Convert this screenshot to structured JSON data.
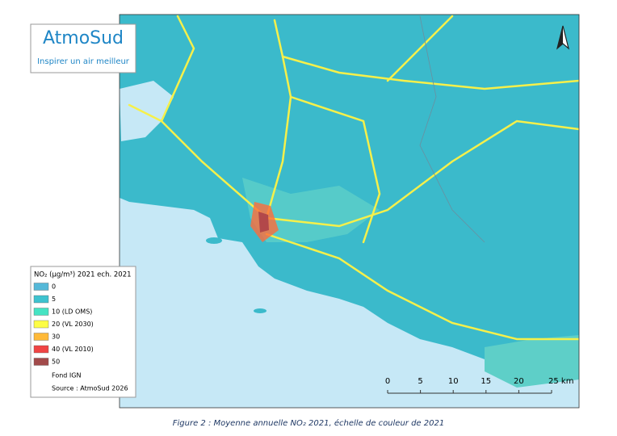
{
  "logo": {
    "name": "AtmoSud",
    "tagline": "Inspirer un air meilleur"
  },
  "legend": {
    "title": "NO₂ (µg/m³) 2021 ech. 2021",
    "items": [
      {
        "label": "0",
        "color": "#55b8d8"
      },
      {
        "label": "5",
        "color": "#3ec2cf"
      },
      {
        "label": "10 (LD OMS)",
        "color": "#45e3c3"
      },
      {
        "label": "20 (VL 2030)",
        "color": "#fdfd45"
      },
      {
        "label": "30",
        "color": "#ffb938"
      },
      {
        "label": "40 (VL 2010)",
        "color": "#f04444"
      },
      {
        "label": "50",
        "color": "#a24a4a"
      }
    ],
    "notes": [
      "Fond IGN",
      "Source : AtmoSud 2026"
    ]
  },
  "scale_bar": {
    "labels": [
      "0",
      "5",
      "10",
      "15",
      "20",
      "25 km"
    ]
  },
  "caption": "Figure 2 : Moyenne annuelle NO₂ 2021, échelle de couleur de 2021"
}
